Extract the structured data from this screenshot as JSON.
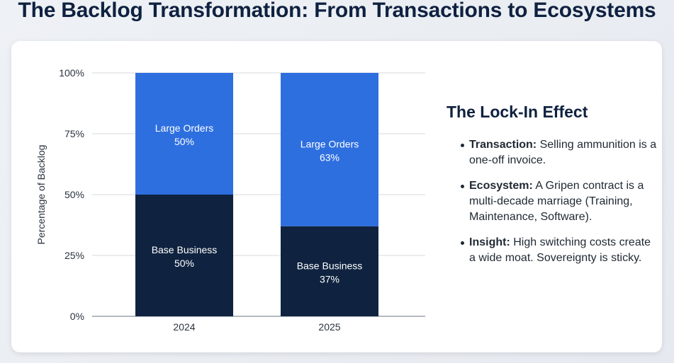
{
  "page_title": "The Backlog Transformation: From Transactions to Ecosystems",
  "colors": {
    "large_orders": "#2e6fe0",
    "base_business": "#0f2340",
    "title": "#0f2140"
  },
  "chart_data": {
    "type": "bar",
    "stacked": true,
    "categories": [
      "2024",
      "2025"
    ],
    "series": [
      {
        "name": "Base Business",
        "values": [
          50,
          37
        ],
        "labels": [
          "Base Business\n50%",
          "Base Business\n37%"
        ]
      },
      {
        "name": "Large Orders",
        "values": [
          50,
          63
        ],
        "labels": [
          "Large Orders\n50%",
          "Large Orders\n63%"
        ]
      }
    ],
    "ylabel": "Percentage of Backlog",
    "xlabel": "",
    "ylim": [
      0,
      100
    ],
    "yticks": [
      "0%",
      "25%",
      "50%",
      "75%",
      "100%"
    ],
    "grid": true
  },
  "panel": {
    "title": "The Lock-In Effect",
    "bullets": [
      {
        "term": "Transaction:",
        "text": " Selling ammunition is a one-off invoice."
      },
      {
        "term": "Ecosystem:",
        "text": " A Gripen contract is a multi-decade marriage (Training, Maintenance, Software)."
      },
      {
        "term": "Insight:",
        "text": " High switching costs create a wide moat. Sovereignty is sticky."
      }
    ]
  }
}
